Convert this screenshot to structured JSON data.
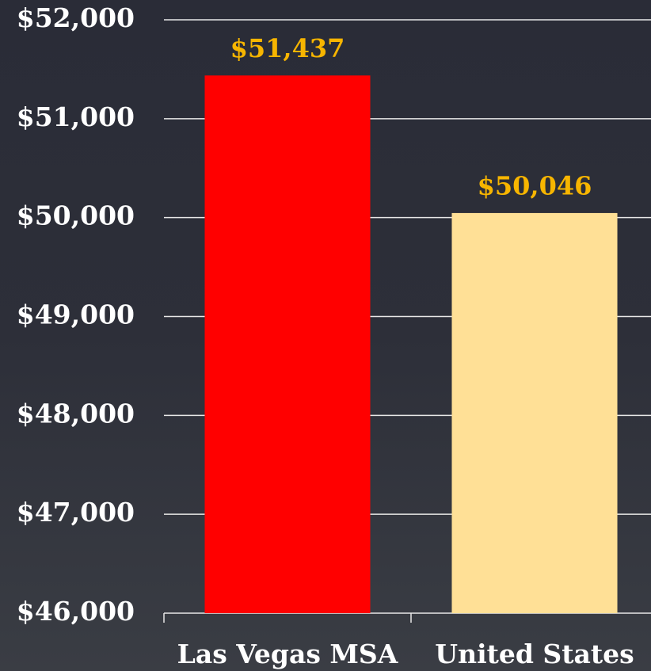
{
  "chart_data": {
    "type": "bar",
    "categories": [
      "Las Vegas MSA",
      "United States"
    ],
    "values": [
      51437,
      50046
    ],
    "value_labels": [
      "$51,437",
      "$50,046"
    ],
    "colors": [
      "#ff0000",
      "#ffe096"
    ],
    "value_label_color": "#f7b500",
    "ylim": [
      46000,
      52000
    ],
    "yticks": [
      {
        "value": 46000,
        "label": "$46,000"
      },
      {
        "value": 47000,
        "label": "$47,000"
      },
      {
        "value": 48000,
        "label": "$48,000"
      },
      {
        "value": 49000,
        "label": "$49,000"
      },
      {
        "value": 50000,
        "label": "$50,000"
      },
      {
        "value": 51000,
        "label": "$51,000"
      },
      {
        "value": 52000,
        "label": "$52,000"
      }
    ],
    "grid": true
  }
}
